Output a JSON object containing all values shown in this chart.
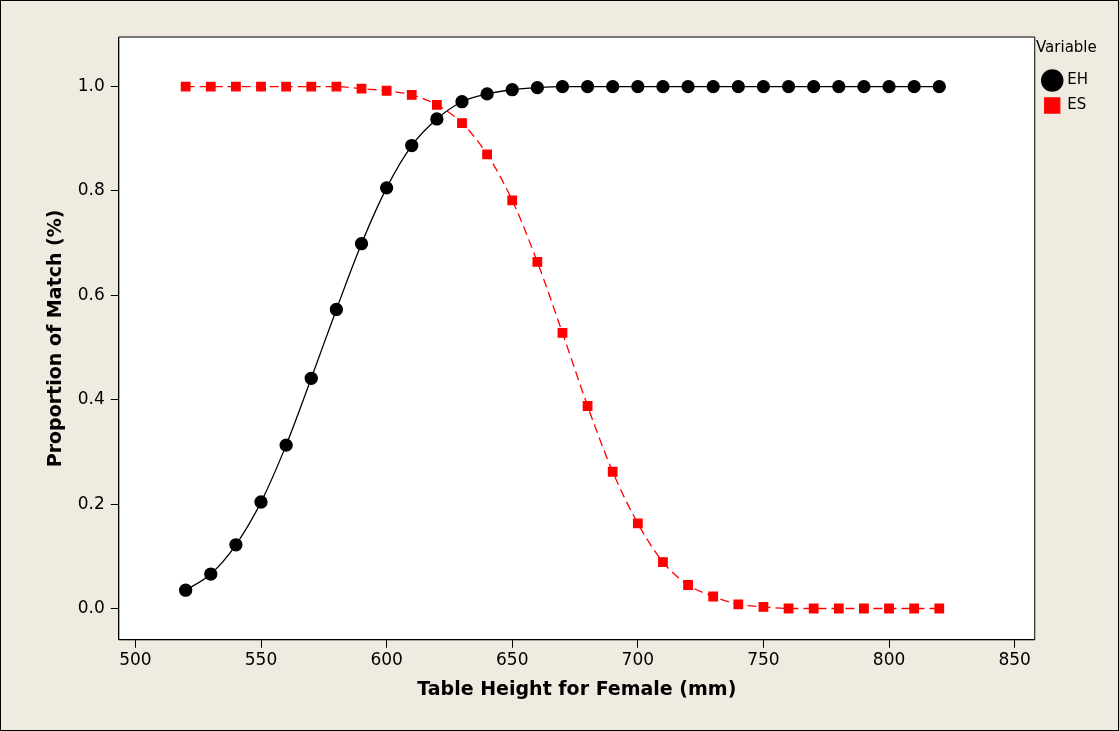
{
  "chart_data": {
    "type": "line",
    "xlabel": "Table Height for Female (mm)",
    "ylabel": "Proportion of Match (%)",
    "legend_title": "Variable",
    "legend": "right",
    "x": [
      520,
      530,
      540,
      550,
      560,
      570,
      580,
      590,
      600,
      610,
      620,
      630,
      640,
      650,
      660,
      670,
      680,
      690,
      700,
      710,
      720,
      730,
      740,
      750,
      760,
      770,
      780,
      790,
      800,
      810,
      820
    ],
    "series": [
      {
        "name": "EH",
        "color": "#000000",
        "marker": "circle",
        "line_style": "solid",
        "values": [
          0.035,
          0.066,
          0.122,
          0.204,
          0.313,
          0.441,
          0.573,
          0.699,
          0.806,
          0.887,
          0.938,
          0.971,
          0.986,
          0.994,
          0.998,
          1,
          1,
          1,
          1,
          1,
          1,
          1,
          1,
          1,
          1,
          1,
          1,
          1,
          1,
          1,
          1
        ]
      },
      {
        "name": "ES",
        "color": "#ff0000",
        "marker": "square",
        "line_style": "dashed",
        "values": [
          1,
          1,
          1,
          1,
          1,
          1,
          1,
          0.996,
          0.992,
          0.984,
          0.965,
          0.93,
          0.87,
          0.782,
          0.664,
          0.528,
          0.388,
          0.262,
          0.163,
          0.089,
          0.045,
          0.023,
          0.008,
          0.003,
          0,
          0,
          0,
          0,
          0,
          0,
          0
        ]
      }
    ],
    "xlim": [
      493.4,
      858
    ],
    "xticks": [
      500,
      550,
      600,
      650,
      700,
      750,
      800,
      850
    ],
    "ylim": [
      -0.06,
      1.095
    ],
    "yticks": [
      {
        "value": 0,
        "label": "0.0"
      },
      {
        "value": 0.2,
        "label": "0.2"
      },
      {
        "value": 0.4,
        "label": "0.4"
      },
      {
        "value": 0.6,
        "label": "0.6"
      },
      {
        "value": 0.8,
        "label": "0.8"
      },
      {
        "value": 1,
        "label": "1.0"
      }
    ],
    "grid": false
  }
}
